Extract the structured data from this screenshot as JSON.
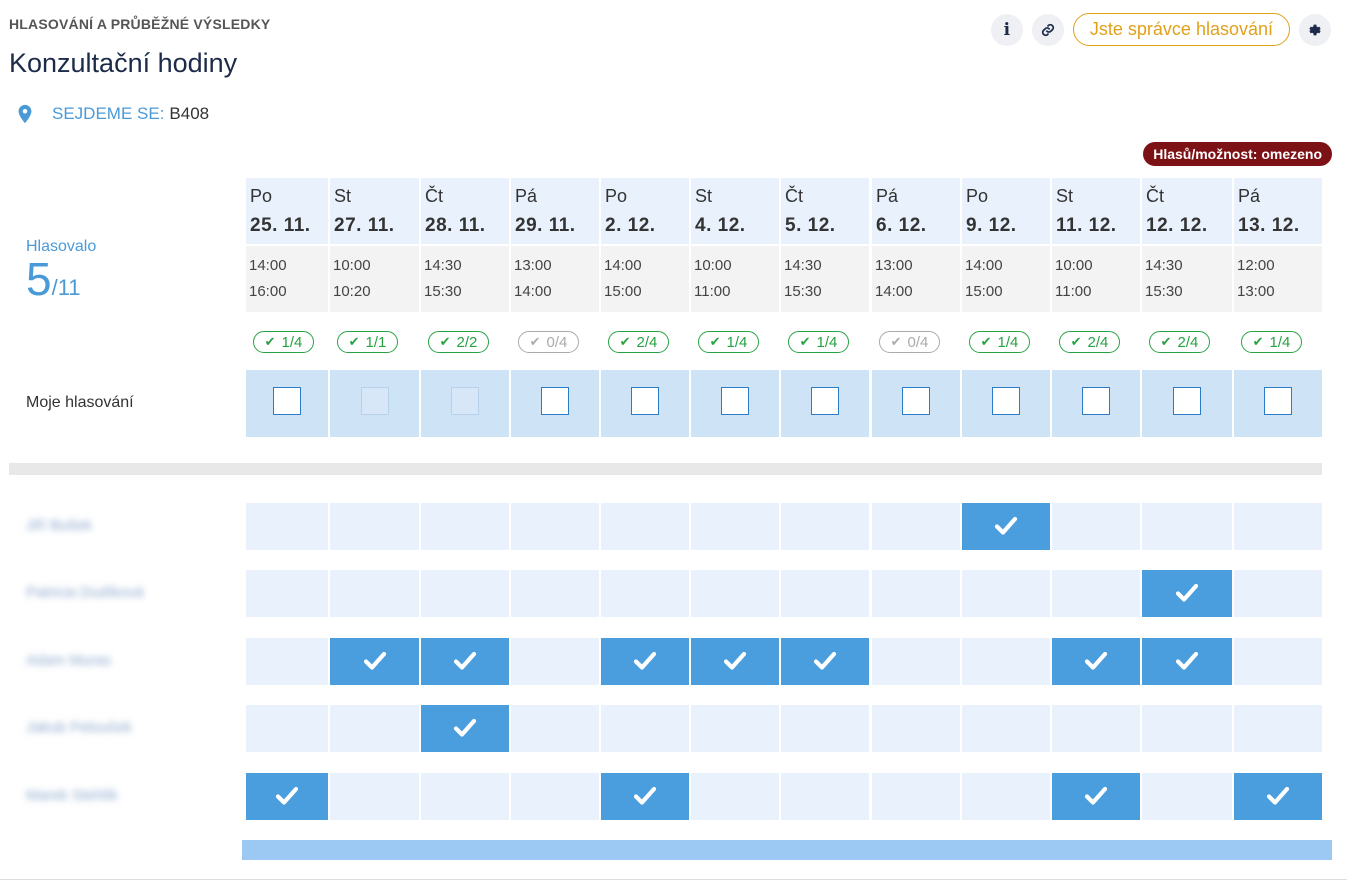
{
  "header": {
    "kicker": "HLASOVÁNÍ A PRŮBĚŽNÉ VÝSLEDKY",
    "title": "Konzultační hodiny",
    "location_label": "SEJDEME SE:",
    "location_value": "B408",
    "info_label": "i",
    "admin_label": "Jste správce hlasování",
    "limit_badge": "Hlasů/možnost: omezeno"
  },
  "voted": {
    "label": "Hlasovalo",
    "count": "5",
    "total": "/11"
  },
  "my_votes_label": "Moje hlasování",
  "colors": {
    "accent": "#4a9ede",
    "admin": "#e0a11b",
    "limit": "#7c1216",
    "ok": "#27a243"
  },
  "days": [
    {
      "dow": "Po",
      "date": "25. 11.",
      "from": "14:00",
      "to": "16:00",
      "votes": "1/4",
      "zero": false,
      "disabled": false
    },
    {
      "dow": "St",
      "date": "27. 11.",
      "from": "10:00",
      "to": "10:20",
      "votes": "1/1",
      "zero": false,
      "disabled": true
    },
    {
      "dow": "Čt",
      "date": "28. 11.",
      "from": "14:30",
      "to": "15:30",
      "votes": "2/2",
      "zero": false,
      "disabled": true
    },
    {
      "dow": "Pá",
      "date": "29. 11.",
      "from": "13:00",
      "to": "14:00",
      "votes": "0/4",
      "zero": true,
      "disabled": false
    },
    {
      "dow": "Po",
      "date": "2. 12.",
      "from": "14:00",
      "to": "15:00",
      "votes": "2/4",
      "zero": false,
      "disabled": false
    },
    {
      "dow": "St",
      "date": "4. 12.",
      "from": "10:00",
      "to": "11:00",
      "votes": "1/4",
      "zero": false,
      "disabled": false
    },
    {
      "dow": "Čt",
      "date": "5. 12.",
      "from": "14:30",
      "to": "15:30",
      "votes": "1/4",
      "zero": false,
      "disabled": false
    },
    {
      "dow": "Pá",
      "date": "6. 12.",
      "from": "13:00",
      "to": "14:00",
      "votes": "0/4",
      "zero": true,
      "disabled": false
    },
    {
      "dow": "Po",
      "date": "9. 12.",
      "from": "14:00",
      "to": "15:00",
      "votes": "1/4",
      "zero": false,
      "disabled": false
    },
    {
      "dow": "St",
      "date": "11. 12.",
      "from": "10:00",
      "to": "11:00",
      "votes": "2/4",
      "zero": false,
      "disabled": false
    },
    {
      "dow": "Čt",
      "date": "12. 12.",
      "from": "14:30",
      "to": "15:30",
      "votes": "2/4",
      "zero": false,
      "disabled": false
    },
    {
      "dow": "Pá",
      "date": "13. 12.",
      "from": "12:00",
      "to": "13:00",
      "votes": "1/4",
      "zero": false,
      "disabled": false
    }
  ],
  "participants": [
    {
      "name": "Jiří Bušek",
      "votes": [
        0,
        0,
        0,
        0,
        0,
        0,
        0,
        0,
        1,
        0,
        0,
        0
      ]
    },
    {
      "name": "Patricia Dudíková",
      "votes": [
        0,
        0,
        0,
        0,
        0,
        0,
        0,
        0,
        0,
        0,
        1,
        0
      ]
    },
    {
      "name": "Adam Muras",
      "votes": [
        0,
        1,
        1,
        0,
        1,
        1,
        1,
        0,
        0,
        1,
        1,
        0
      ]
    },
    {
      "name": "Jakub Pelouček",
      "votes": [
        0,
        0,
        1,
        0,
        0,
        0,
        0,
        0,
        0,
        0,
        0,
        0
      ]
    },
    {
      "name": "Marek Stehlík",
      "votes": [
        1,
        0,
        0,
        0,
        1,
        0,
        0,
        0,
        0,
        1,
        0,
        1
      ]
    }
  ]
}
